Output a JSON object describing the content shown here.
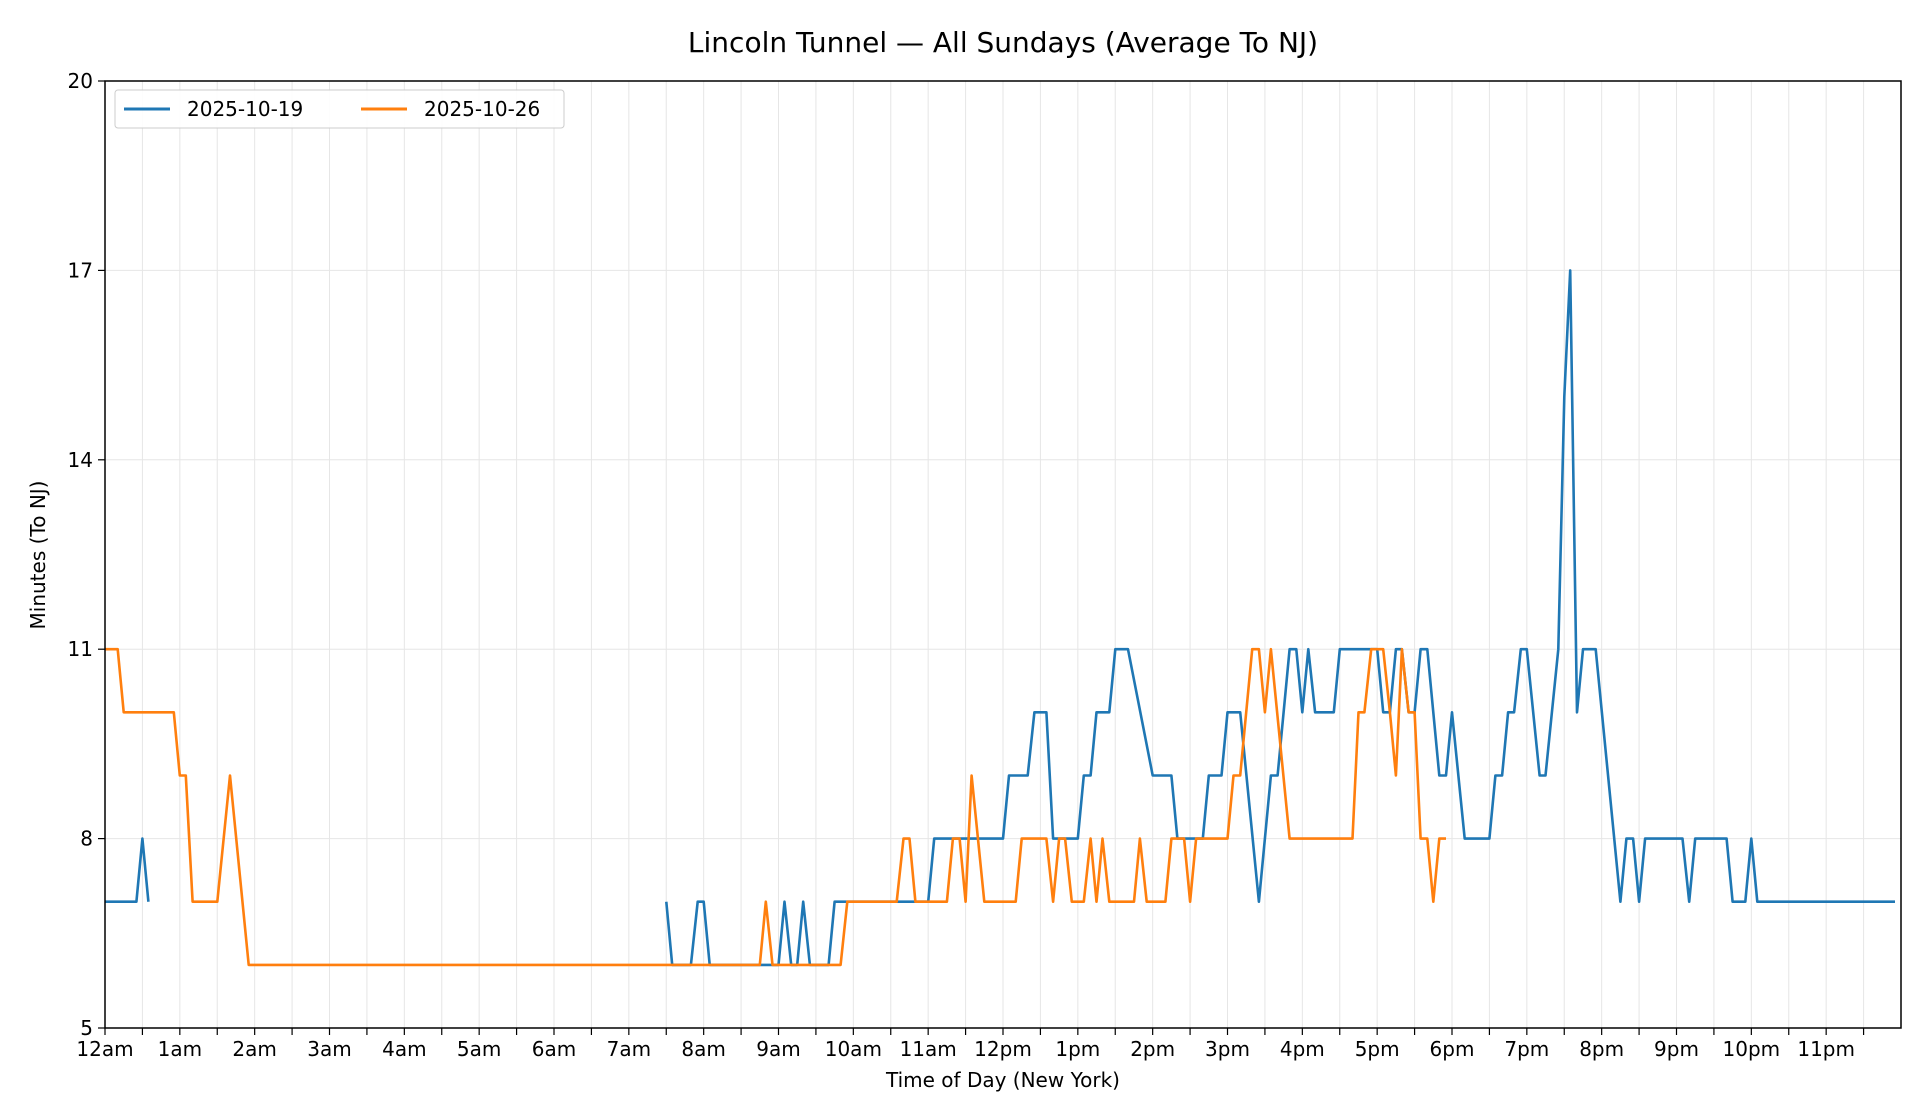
{
  "chart_data": {
    "type": "line",
    "title": "Lincoln Tunnel — All Sundays (Average To NJ)",
    "xlabel": "Time of Day (New York)",
    "ylabel": "Minutes (To NJ)",
    "xlim": [
      0,
      24
    ],
    "ylim": [
      5,
      20
    ],
    "yticks": [
      5,
      8,
      11,
      14,
      17,
      20
    ],
    "xtick_labels": [
      "12am",
      "1am",
      "2am",
      "3am",
      "4am",
      "5am",
      "6am",
      "7am",
      "8am",
      "9am",
      "10am",
      "11am",
      "12pm",
      "1pm",
      "2pm",
      "3pm",
      "4pm",
      "5pm",
      "6pm",
      "7pm",
      "8pm",
      "9pm",
      "10pm",
      "11pm"
    ],
    "grid": true,
    "legend_position": "top-left",
    "series": [
      {
        "name": "2025-10-19",
        "color": "#1f77b4",
        "segments": [
          [
            [
              0,
              7
            ],
            [
              0.42,
              7
            ],
            [
              0.5,
              8
            ],
            [
              0.58,
              7
            ]
          ],
          [
            [
              7.5,
              7
            ],
            [
              7.58,
              6
            ],
            [
              7.83,
              6
            ],
            [
              7.92,
              7
            ],
            [
              8.0,
              7
            ],
            [
              8.08,
              6
            ],
            [
              9.0,
              6
            ],
            [
              9.08,
              7
            ],
            [
              9.17,
              6
            ],
            [
              9.25,
              6
            ],
            [
              9.33,
              7
            ],
            [
              9.42,
              6
            ],
            [
              9.67,
              6
            ],
            [
              9.75,
              7
            ],
            [
              11.0,
              7
            ],
            [
              11.08,
              8
            ],
            [
              12.0,
              8
            ],
            [
              12.08,
              9
            ],
            [
              12.33,
              9
            ],
            [
              12.42,
              10
            ],
            [
              12.58,
              10
            ],
            [
              12.67,
              8
            ],
            [
              13.0,
              8
            ],
            [
              13.08,
              9
            ],
            [
              13.17,
              9
            ],
            [
              13.25,
              10
            ],
            [
              13.42,
              10
            ],
            [
              13.5,
              11
            ],
            [
              13.67,
              11
            ],
            [
              14.0,
              9
            ],
            [
              14.25,
              9
            ],
            [
              14.33,
              8
            ],
            [
              14.67,
              8
            ],
            [
              14.75,
              9
            ],
            [
              14.92,
              9
            ],
            [
              15.0,
              10
            ],
            [
              15.17,
              10
            ],
            [
              15.42,
              7
            ],
            [
              15.58,
              9
            ],
            [
              15.67,
              9
            ],
            [
              15.83,
              11
            ],
            [
              15.92,
              11
            ],
            [
              16.0,
              10
            ],
            [
              16.08,
              11
            ],
            [
              16.17,
              10
            ],
            [
              16.42,
              10
            ],
            [
              16.5,
              11
            ],
            [
              17.0,
              11
            ],
            [
              17.08,
              10
            ],
            [
              17.17,
              10
            ],
            [
              17.25,
              11
            ],
            [
              17.33,
              11
            ],
            [
              17.42,
              10
            ],
            [
              17.5,
              10
            ],
            [
              17.58,
              11
            ],
            [
              17.67,
              11
            ],
            [
              17.83,
              9
            ],
            [
              17.92,
              9
            ],
            [
              18.0,
              10
            ],
            [
              18.17,
              8
            ],
            [
              18.5,
              8
            ],
            [
              18.58,
              9
            ],
            [
              18.67,
              9
            ],
            [
              18.75,
              10
            ],
            [
              18.83,
              10
            ],
            [
              18.92,
              11
            ],
            [
              19.0,
              11
            ],
            [
              19.17,
              9
            ],
            [
              19.25,
              9
            ],
            [
              19.42,
              11
            ],
            [
              19.5,
              15
            ],
            [
              19.58,
              17
            ],
            [
              19.67,
              10
            ],
            [
              19.75,
              11
            ],
            [
              19.92,
              11
            ],
            [
              20.25,
              7
            ],
            [
              20.33,
              8
            ],
            [
              20.42,
              8
            ],
            [
              20.5,
              7
            ],
            [
              20.58,
              8
            ],
            [
              21.08,
              8
            ],
            [
              21.17,
              7
            ],
            [
              21.25,
              8
            ],
            [
              21.67,
              8
            ],
            [
              21.75,
              7
            ],
            [
              21.92,
              7
            ],
            [
              22.0,
              8
            ],
            [
              22.08,
              7
            ],
            [
              23.92,
              7
            ]
          ]
        ]
      },
      {
        "name": "2025-10-26",
        "color": "#ff7f0e",
        "segments": [
          [
            [
              0,
              11
            ],
            [
              0.17,
              11
            ],
            [
              0.25,
              10
            ],
            [
              0.92,
              10
            ],
            [
              1.0,
              9
            ],
            [
              1.08,
              9
            ],
            [
              1.17,
              7
            ],
            [
              1.5,
              7
            ],
            [
              1.67,
              9
            ],
            [
              1.92,
              6
            ],
            [
              8.75,
              6
            ],
            [
              8.83,
              7
            ],
            [
              8.92,
              6
            ],
            [
              9.83,
              6
            ],
            [
              9.92,
              7
            ],
            [
              10.58,
              7
            ],
            [
              10.67,
              8
            ],
            [
              10.75,
              8
            ],
            [
              10.83,
              7
            ],
            [
              11.25,
              7
            ],
            [
              11.33,
              8
            ],
            [
              11.42,
              8
            ],
            [
              11.5,
              7
            ],
            [
              11.58,
              9
            ],
            [
              11.75,
              7
            ],
            [
              12.17,
              7
            ],
            [
              12.25,
              8
            ],
            [
              12.58,
              8
            ],
            [
              12.67,
              7
            ],
            [
              12.75,
              8
            ],
            [
              12.83,
              8
            ],
            [
              12.92,
              7
            ],
            [
              13.08,
              7
            ],
            [
              13.17,
              8
            ],
            [
              13.25,
              7
            ],
            [
              13.33,
              8
            ],
            [
              13.42,
              7
            ],
            [
              13.75,
              7
            ],
            [
              13.83,
              8
            ],
            [
              13.92,
              7
            ],
            [
              14.17,
              7
            ],
            [
              14.25,
              8
            ],
            [
              14.42,
              8
            ],
            [
              14.5,
              7
            ],
            [
              14.58,
              8
            ],
            [
              15.0,
              8
            ],
            [
              15.08,
              9
            ],
            [
              15.17,
              9
            ],
            [
              15.33,
              11
            ],
            [
              15.42,
              11
            ],
            [
              15.5,
              10
            ],
            [
              15.58,
              11
            ],
            [
              15.83,
              8
            ],
            [
              16.67,
              8
            ],
            [
              16.75,
              10
            ],
            [
              16.83,
              10
            ],
            [
              16.92,
              11
            ],
            [
              17.08,
              11
            ],
            [
              17.17,
              10
            ],
            [
              17.25,
              9
            ],
            [
              17.33,
              11
            ],
            [
              17.42,
              10
            ],
            [
              17.5,
              10
            ],
            [
              17.58,
              8
            ],
            [
              17.67,
              8
            ],
            [
              17.75,
              7
            ],
            [
              17.83,
              8
            ],
            [
              17.92,
              8
            ]
          ]
        ]
      }
    ]
  }
}
